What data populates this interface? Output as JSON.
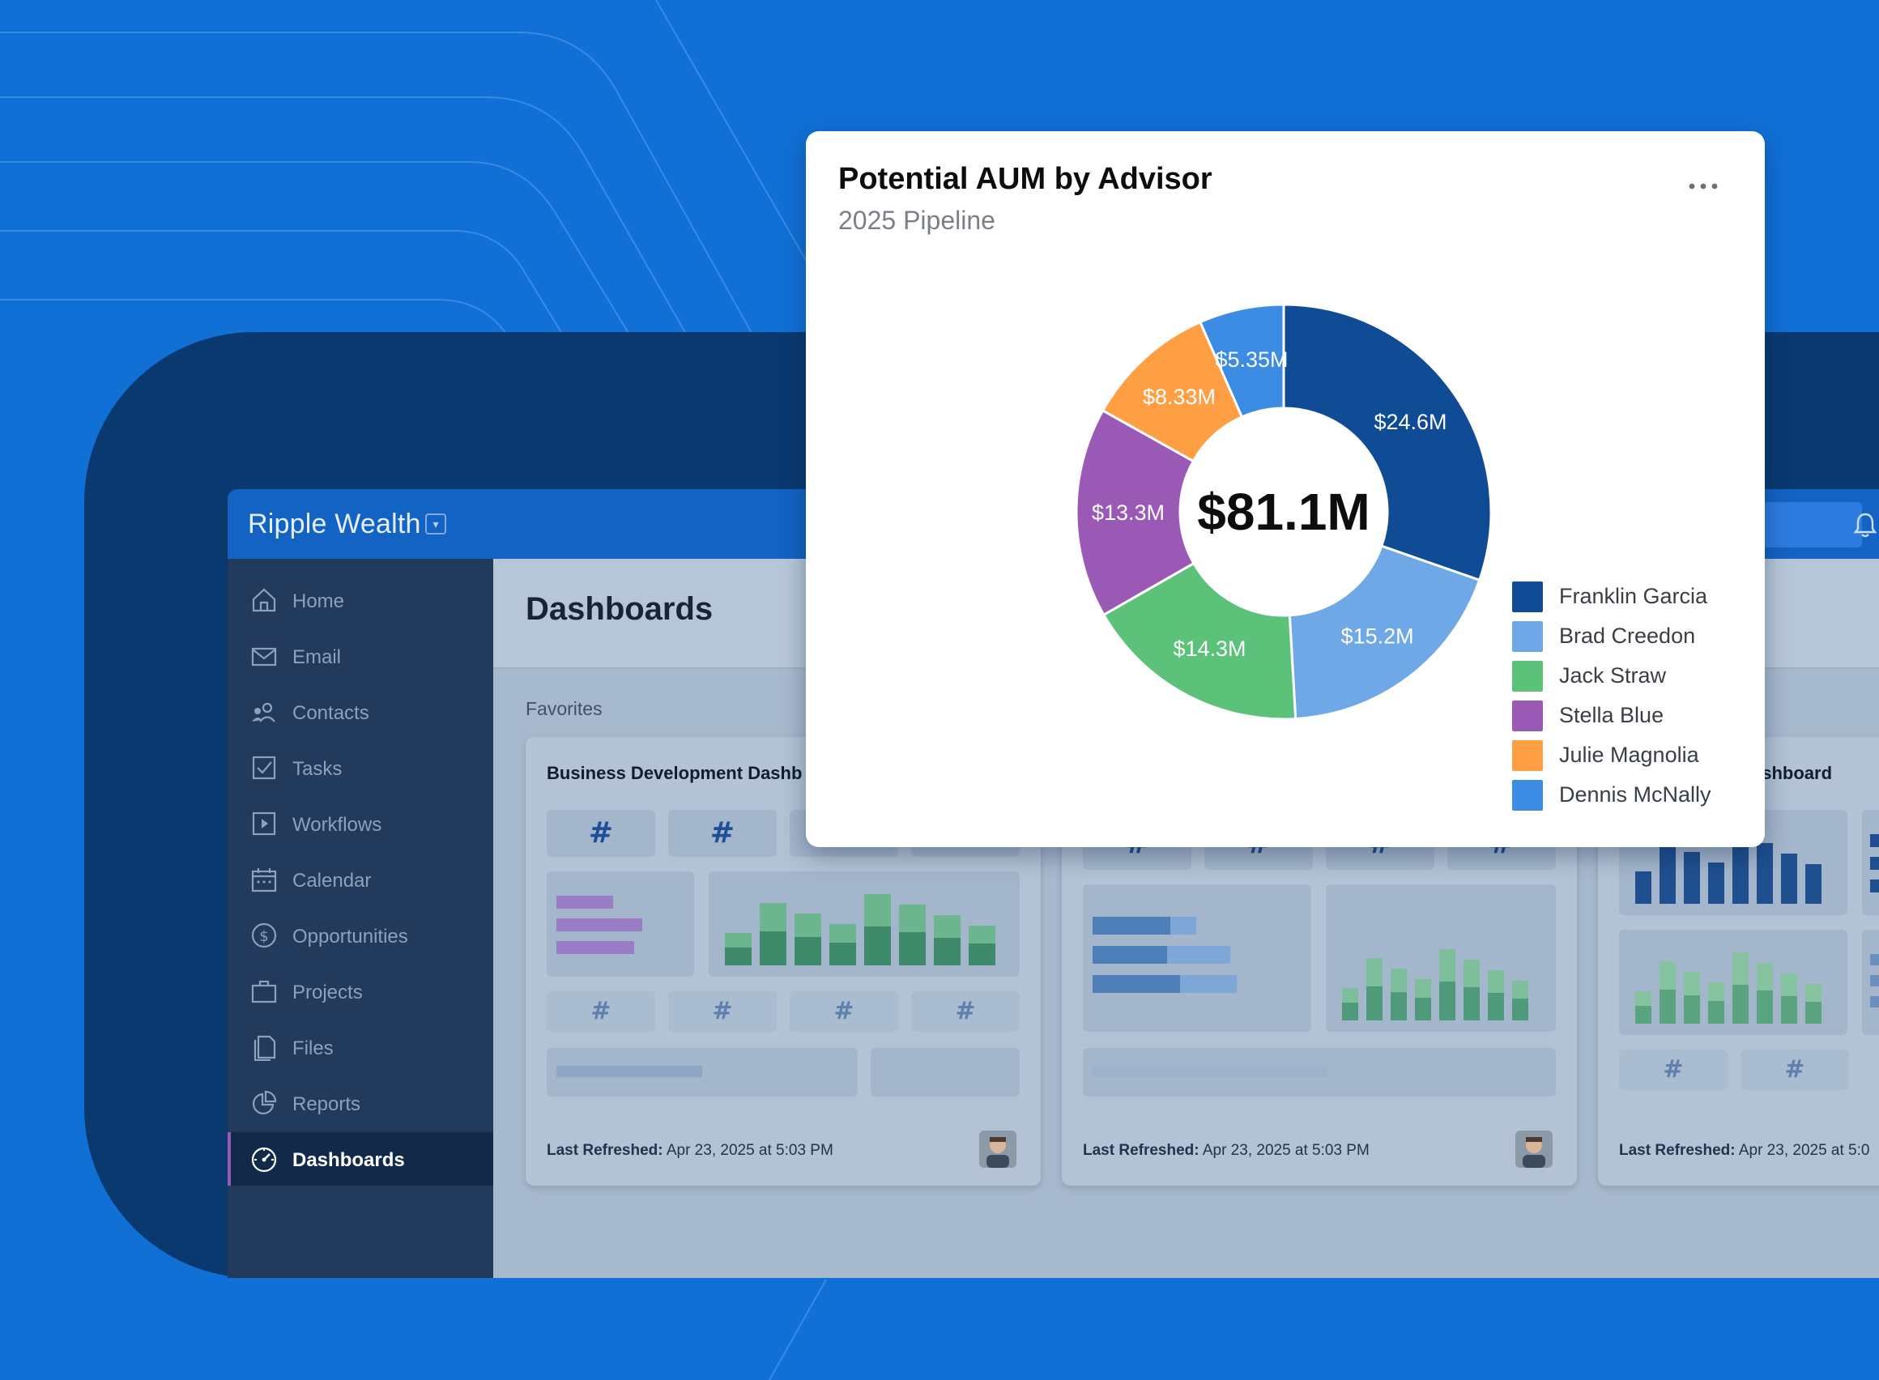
{
  "app": {
    "brand": "Ripple Wealth",
    "brand_caret": "▾"
  },
  "sidebar": {
    "items": [
      {
        "label": "Home",
        "icon": "home-icon"
      },
      {
        "label": "Email",
        "icon": "mail-icon"
      },
      {
        "label": "Contacts",
        "icon": "contacts-icon"
      },
      {
        "label": "Tasks",
        "icon": "checkbox-icon"
      },
      {
        "label": "Workflows",
        "icon": "play-icon"
      },
      {
        "label": "Calendar",
        "icon": "calendar-icon"
      },
      {
        "label": "Opportunities",
        "icon": "dollar-icon"
      },
      {
        "label": "Projects",
        "icon": "briefcase-icon"
      },
      {
        "label": "Files",
        "icon": "files-icon"
      },
      {
        "label": "Reports",
        "icon": "pie-chart-icon"
      },
      {
        "label": "Dashboards",
        "icon": "gauge-icon",
        "active": true
      }
    ]
  },
  "main": {
    "title": "Dashboards",
    "section_label": "Favorites",
    "cards": [
      {
        "title": "Business Development Dashb",
        "footer_label": "Last Refreshed:",
        "footer_value": " Apr 23, 2025 at 5:03 PM"
      },
      {
        "title": "",
        "footer_label": "Last Refreshed:",
        "footer_value": " Apr 23, 2025 at 5:03 PM"
      },
      {
        "title": "ashboard",
        "footer_label": "Last Refreshed:",
        "footer_value": " Apr 23, 2025 at 5:0"
      }
    ],
    "hash_symbol": "#"
  },
  "popup": {
    "title": "Potential AUM by Advisor",
    "subtitle": "2025 Pipeline",
    "more_label": "more-options"
  },
  "chart_data": {
    "type": "pie",
    "title": "Potential AUM by Advisor",
    "subtitle": "2025 Pipeline",
    "center_label": "$81.1M",
    "total": 81.1,
    "unit": "$M",
    "legend_position": "bottom-right",
    "series": [
      {
        "name": "Franklin Garcia",
        "value": 24.6,
        "label": "$24.6M",
        "color": "#0f4c95"
      },
      {
        "name": "Brad Creedon",
        "value": 15.2,
        "label": "$15.2M",
        "color": "#6fa8e6"
      },
      {
        "name": "Jack Straw",
        "value": 14.3,
        "label": "$14.3M",
        "color": "#5cc27a"
      },
      {
        "name": "Stella Blue",
        "value": 13.3,
        "label": "$13.3M",
        "color": "#9b59b6"
      },
      {
        "name": "Julie Magnolia",
        "value": 8.33,
        "label": "$8.33M",
        "color": "#ff9f43"
      },
      {
        "name": "Dennis McNally",
        "value": 5.35,
        "label": "$5.35M",
        "color": "#3d8ce3"
      }
    ]
  },
  "colors": {
    "background": "#1170d6",
    "backdrop": "#0a3970",
    "topbar": "#1263c3",
    "sidebar": "#223a5c",
    "active_accent": "#9b59b6"
  }
}
